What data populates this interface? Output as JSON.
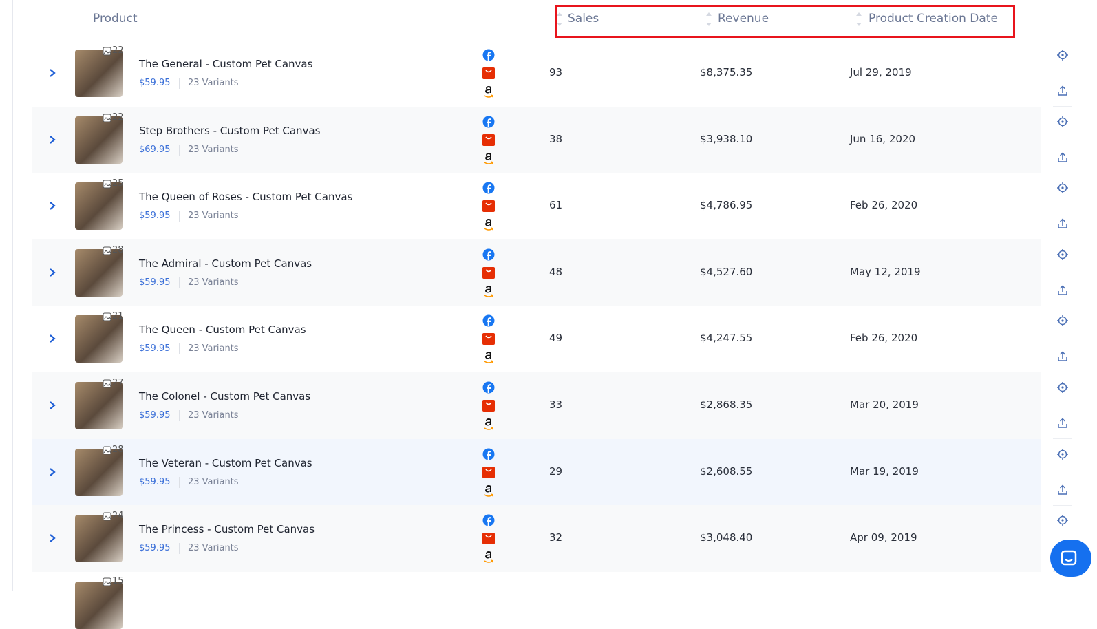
{
  "table": {
    "header": [
      "Product",
      "Sales",
      "Revenue",
      "Product Creation Date"
    ],
    "rows": [
      {
        "image_count": "22",
        "name": "The General - Custom Pet Canvas",
        "price": "$59.95",
        "variants": "23 Variants",
        "sales": "93",
        "revenue": "$8,375.35",
        "date": "Jul 29, 2019"
      },
      {
        "image_count": "22",
        "name": "Step Brothers - Custom Pet Canvas",
        "price": "$69.95",
        "variants": "23 Variants",
        "sales": "38",
        "revenue": "$3,938.10",
        "date": "Jun 16, 2020"
      },
      {
        "image_count": "25",
        "name": "The Queen of Roses - Custom Pet Canvas",
        "price": "$59.95",
        "variants": "23 Variants",
        "sales": "61",
        "revenue": "$4,786.95",
        "date": "Feb 26, 2020"
      },
      {
        "image_count": "28",
        "name": "The Admiral - Custom Pet Canvas",
        "price": "$59.95",
        "variants": "23 Variants",
        "sales": "48",
        "revenue": "$4,527.60",
        "date": "May 12, 2019"
      },
      {
        "image_count": "21",
        "name": "The Queen - Custom Pet Canvas",
        "price": "$59.95",
        "variants": "23 Variants",
        "sales": "49",
        "revenue": "$4,247.55",
        "date": "Feb 26, 2020"
      },
      {
        "image_count": "27",
        "name": "The Colonel - Custom Pet Canvas",
        "price": "$59.95",
        "variants": "23 Variants",
        "sales": "33",
        "revenue": "$2,868.35",
        "date": "Mar 20, 2019"
      },
      {
        "image_count": "28",
        "name": "The Veteran - Custom Pet Canvas",
        "price": "$59.95",
        "variants": "23 Variants",
        "sales": "29",
        "revenue": "$2,608.55",
        "date": "Mar 19, 2019"
      },
      {
        "image_count": "24",
        "name": "The Princess - Custom Pet Canvas",
        "price": "$59.95",
        "variants": "23 Variants",
        "sales": "32",
        "revenue": "$3,048.40",
        "date": "Apr 09, 2019"
      }
    ],
    "partial_row": {
      "image_count": "15"
    }
  }
}
